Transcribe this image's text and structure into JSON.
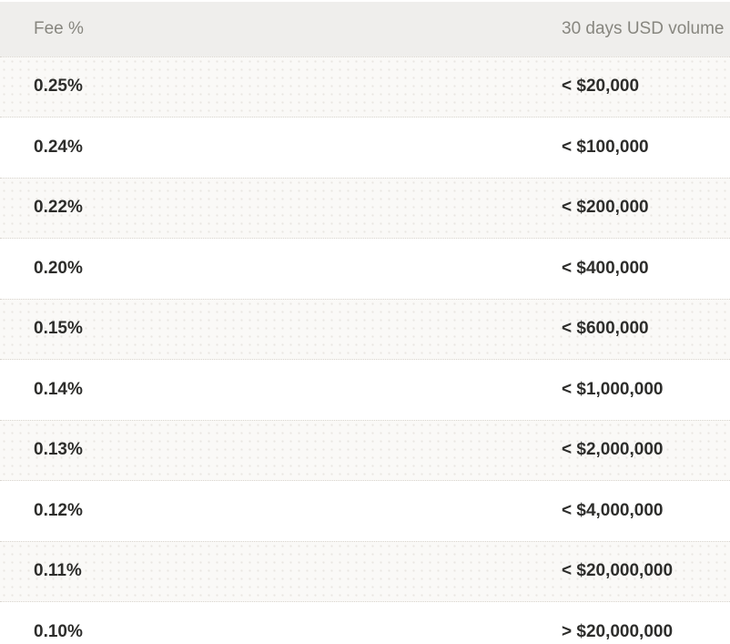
{
  "table": {
    "columns": {
      "fee": "Fee %",
      "volume": "30 days USD volume"
    },
    "rows": [
      {
        "fee": "0.25%",
        "volume": "< $20,000"
      },
      {
        "fee": "0.24%",
        "volume": "< $100,000"
      },
      {
        "fee": "0.22%",
        "volume": "< $200,000"
      },
      {
        "fee": "0.20%",
        "volume": "< $400,000"
      },
      {
        "fee": "0.15%",
        "volume": "< $600,000"
      },
      {
        "fee": "0.14%",
        "volume": "< $1,000,000"
      },
      {
        "fee": "0.13%",
        "volume": "< $2,000,000"
      },
      {
        "fee": "0.12%",
        "volume": "< $4,000,000"
      },
      {
        "fee": "0.11%",
        "volume": "< $20,000,000"
      },
      {
        "fee": "0.10%",
        "volume": "> $20,000,000"
      }
    ],
    "colors": {
      "header_bg": "#efeeec",
      "header_text": "#87867f",
      "row_text": "#2d2d2b",
      "stripe_bg": "#faf9f7",
      "stripe_dot": "#e9e6e1",
      "row_bg": "#ffffff"
    }
  }
}
